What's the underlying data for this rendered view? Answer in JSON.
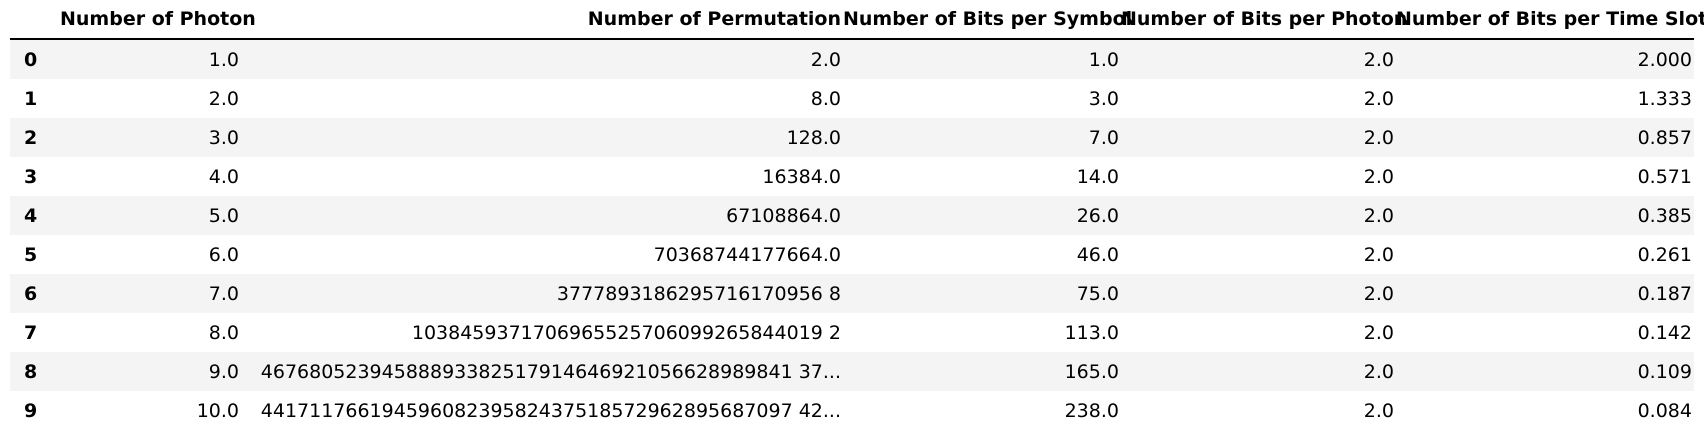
{
  "table": {
    "columns": [
      "",
      "Number of Photon",
      "Number of Permutation",
      "Number of Bits per Symbol",
      "Number of Bits per Photon",
      "Number of Bits per Time Slots"
    ],
    "rows": [
      {
        "index": "0",
        "photon": "1.0",
        "permutation": "2.0",
        "bits_per_symbol": "1.0",
        "bits_per_photon": "2.0",
        "bits_per_time_slots": "2.000"
      },
      {
        "index": "1",
        "photon": "2.0",
        "permutation": "8.0",
        "bits_per_symbol": "3.0",
        "bits_per_photon": "2.0",
        "bits_per_time_slots": "1.333"
      },
      {
        "index": "2",
        "photon": "3.0",
        "permutation": "128.0",
        "bits_per_symbol": "7.0",
        "bits_per_photon": "2.0",
        "bits_per_time_slots": "0.857"
      },
      {
        "index": "3",
        "photon": "4.0",
        "permutation": "16384.0",
        "bits_per_symbol": "14.0",
        "bits_per_photon": "2.0",
        "bits_per_time_slots": "0.571"
      },
      {
        "index": "4",
        "photon": "5.0",
        "permutation": "67108864.0",
        "bits_per_symbol": "26.0",
        "bits_per_photon": "2.0",
        "bits_per_time_slots": "0.385"
      },
      {
        "index": "5",
        "photon": "6.0",
        "permutation": "70368744177664.0",
        "bits_per_symbol": "46.0",
        "bits_per_photon": "2.0",
        "bits_per_time_slots": "0.261"
      },
      {
        "index": "6",
        "photon": "7.0",
        "permutation": "3777893186295716170956 8",
        "bits_per_symbol": "75.0",
        "bits_per_photon": "2.0",
        "bits_per_time_slots": "0.187"
      },
      {
        "index": "7",
        "photon": "8.0",
        "permutation": "1038459371706965525706099265844019 2",
        "bits_per_symbol": "113.0",
        "bits_per_photon": "2.0",
        "bits_per_time_slots": "0.142"
      },
      {
        "index": "8",
        "photon": "9.0",
        "permutation": "46768052394588893382517914646921056628989841 37...",
        "bits_per_symbol": "165.0",
        "bits_per_photon": "2.0",
        "bits_per_time_slots": "0.109"
      },
      {
        "index": "9",
        "photon": "10.0",
        "permutation": "44171176619459608239582437518572962895687097 42...",
        "bits_per_symbol": "238.0",
        "bits_per_photon": "2.0",
        "bits_per_time_slots": "0.084"
      }
    ]
  }
}
